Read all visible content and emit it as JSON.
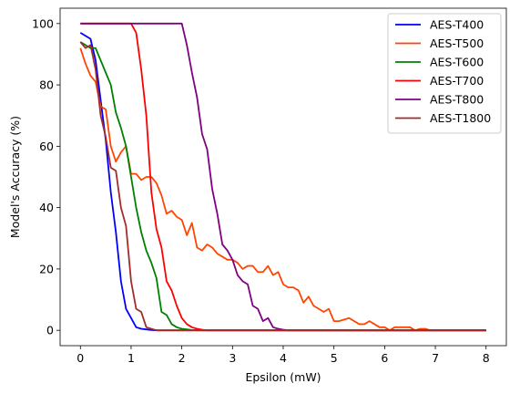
{
  "chart_data": {
    "type": "line",
    "xlabel": "Epsilon (mW)",
    "ylabel": "Model's Accuracy (%)",
    "xlim": [
      -0.4,
      8.4
    ],
    "ylim": [
      -5,
      105
    ],
    "xticks": [
      0,
      1,
      2,
      3,
      4,
      5,
      6,
      7,
      8
    ],
    "yticks": [
      0,
      20,
      40,
      60,
      80,
      100
    ],
    "grid": false,
    "legend_position": "top-right",
    "series": [
      {
        "name": "AES-T400",
        "color": "#0000ff",
        "x": [
          0,
          0.1,
          0.2,
          0.3,
          0.4,
          0.5,
          0.6,
          0.7,
          0.8,
          0.9,
          1.0,
          1.1,
          1.2,
          1.3,
          1.4,
          1.5,
          2.0,
          8.0
        ],
        "y": [
          97,
          96,
          95,
          88,
          75,
          62,
          45,
          32,
          16,
          7,
          4,
          1,
          0.5,
          0.3,
          0.1,
          0,
          0,
          0
        ]
      },
      {
        "name": "AES-T500",
        "color": "#ff4500",
        "x": [
          0,
          0.1,
          0.2,
          0.3,
          0.4,
          0.5,
          0.6,
          0.7,
          0.8,
          0.9,
          1.0,
          1.1,
          1.2,
          1.3,
          1.4,
          1.5,
          1.6,
          1.7,
          1.8,
          1.9,
          2.0,
          2.1,
          2.2,
          2.3,
          2.4,
          2.5,
          2.6,
          2.7,
          2.8,
          2.9,
          3.0,
          3.1,
          3.2,
          3.3,
          3.4,
          3.5,
          3.6,
          3.7,
          3.8,
          3.9,
          4.0,
          4.1,
          4.2,
          4.3,
          4.4,
          4.5,
          4.6,
          4.7,
          4.8,
          4.9,
          5.0,
          5.1,
          5.2,
          5.3,
          5.4,
          5.5,
          5.6,
          5.7,
          5.8,
          5.9,
          6.0,
          6.1,
          6.2,
          6.3,
          6.4,
          6.5,
          6.6,
          6.7,
          6.8,
          6.9,
          7.0,
          8.0
        ],
        "y": [
          92,
          87,
          83,
          81,
          73,
          72,
          60,
          55,
          58,
          60,
          51,
          51,
          49,
          50,
          50,
          48,
          44,
          38,
          39,
          37,
          36,
          31,
          35,
          27,
          26,
          28,
          27,
          25,
          24,
          23,
          23,
          22,
          20,
          21,
          21,
          19,
          19,
          21,
          18,
          19,
          15,
          14,
          14,
          13,
          9,
          11,
          8,
          7,
          6,
          7,
          3,
          3,
          3.5,
          4,
          3,
          2,
          2,
          3,
          2,
          1,
          1,
          0,
          1,
          1,
          1,
          1,
          0,
          0.5,
          0.5,
          0,
          0,
          0
        ]
      },
      {
        "name": "AES-T600",
        "color": "#008000",
        "x": [
          0,
          0.1,
          0.2,
          0.3,
          0.4,
          0.5,
          0.6,
          0.7,
          0.8,
          0.9,
          1.0,
          1.1,
          1.2,
          1.3,
          1.4,
          1.5,
          1.6,
          1.7,
          1.8,
          1.9,
          2.0,
          2.1,
          2.2,
          2.3,
          2.4,
          2.5,
          8.0
        ],
        "y": [
          94,
          93,
          92,
          92,
          88,
          84,
          80,
          71,
          66,
          60,
          50,
          40,
          32,
          26,
          22,
          17,
          6,
          5,
          2,
          1,
          0.5,
          0.3,
          0.1,
          0,
          0,
          0,
          0
        ]
      },
      {
        "name": "AES-T700",
        "color": "#ff0000",
        "x": [
          0,
          0.5,
          1.0,
          1.1,
          1.2,
          1.3,
          1.4,
          1.5,
          1.6,
          1.7,
          1.8,
          1.9,
          2.0,
          2.1,
          2.2,
          2.3,
          2.4,
          2.5,
          8.0
        ],
        "y": [
          100,
          100,
          100,
          97,
          85,
          70,
          45,
          33,
          27,
          16,
          13,
          8,
          4,
          2,
          1,
          0.5,
          0.2,
          0,
          0
        ]
      },
      {
        "name": "AES-T800",
        "color": "#800080",
        "x": [
          0,
          1.0,
          1.5,
          1.9,
          2.0,
          2.1,
          2.2,
          2.3,
          2.4,
          2.5,
          2.6,
          2.7,
          2.8,
          2.9,
          3.0,
          3.1,
          3.2,
          3.3,
          3.4,
          3.5,
          3.6,
          3.7,
          3.8,
          3.9,
          4.0,
          4.1,
          4.2,
          8.0
        ],
        "y": [
          100,
          100,
          100,
          100,
          100,
          93,
          84,
          76,
          64,
          59,
          46,
          38,
          28,
          26,
          23,
          18,
          16,
          15,
          8,
          7,
          3,
          4,
          1,
          0.5,
          0.2,
          0,
          0,
          0
        ]
      },
      {
        "name": "AES-T1800",
        "color": "#a52a2a",
        "x": [
          0,
          0.1,
          0.2,
          0.3,
          0.4,
          0.5,
          0.6,
          0.7,
          0.8,
          0.9,
          1.0,
          1.1,
          1.2,
          1.3,
          1.4,
          1.5,
          2.0,
          8.0
        ],
        "y": [
          94,
          92,
          93,
          85,
          70,
          63,
          53,
          52,
          40,
          34,
          16,
          7,
          6,
          1,
          0.5,
          0,
          0,
          0
        ]
      }
    ]
  }
}
